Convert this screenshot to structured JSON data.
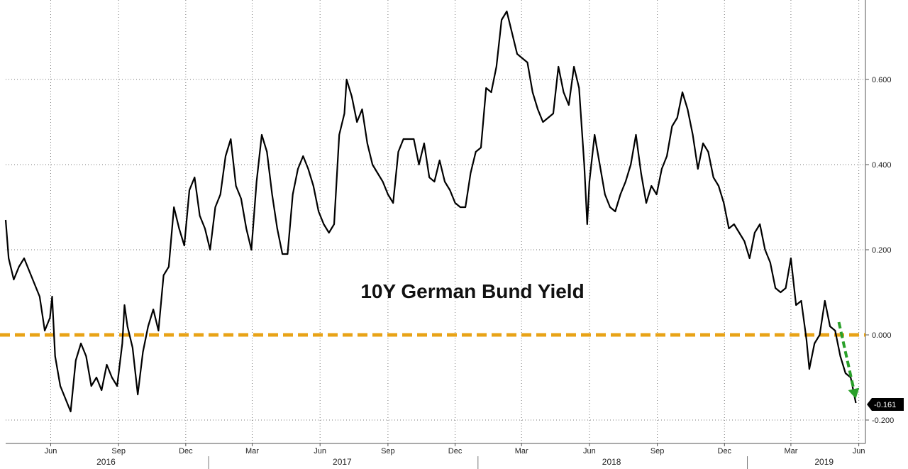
{
  "chart_data": {
    "type": "line",
    "title": "10Y German Bund Yield",
    "ylim": [
      -0.25,
      0.78
    ],
    "yticks": [
      0.6,
      0.4,
      0.2,
      0.0,
      -0.2
    ],
    "ytick_labels": [
      "0.600",
      "0.400",
      "0.200",
      "0.000",
      "-0.200"
    ],
    "grid": true,
    "x_month_ticks": [
      {
        "date": "2016-06-01",
        "label": "Jun"
      },
      {
        "date": "2016-09-01",
        "label": "Sep"
      },
      {
        "date": "2016-12-01",
        "label": "Dec"
      },
      {
        "date": "2017-03-01",
        "label": "Mar"
      },
      {
        "date": "2017-06-01",
        "label": "Jun"
      },
      {
        "date": "2017-09-01",
        "label": "Sep"
      },
      {
        "date": "2017-12-01",
        "label": "Dec"
      },
      {
        "date": "2018-03-01",
        "label": "Mar"
      },
      {
        "date": "2018-06-01",
        "label": "Jun"
      },
      {
        "date": "2018-09-01",
        "label": "Sep"
      },
      {
        "date": "2018-12-01",
        "label": "Dec"
      },
      {
        "date": "2019-03-01",
        "label": "Mar"
      },
      {
        "date": "2019-06-01",
        "label": "Jun"
      }
    ],
    "x_year_labels": [
      {
        "year": "2016",
        "date": "2016-08-15"
      },
      {
        "year": "2017",
        "date": "2017-07-01"
      },
      {
        "year": "2018",
        "date": "2018-07-01"
      },
      {
        "year": "2019",
        "date": "2019-04-15"
      }
    ],
    "x_year_separators": [
      "2017-01-01",
      "2018-01-01",
      "2019-01-01"
    ],
    "x_range": [
      "2016-04-01",
      "2019-06-10"
    ],
    "series": [
      {
        "color": "#000000",
        "points": [
          [
            "2016-04-01",
            0.27
          ],
          [
            "2016-04-05",
            0.18
          ],
          [
            "2016-04-12",
            0.13
          ],
          [
            "2016-04-19",
            0.16
          ],
          [
            "2016-04-26",
            0.18
          ],
          [
            "2016-05-03",
            0.15
          ],
          [
            "2016-05-10",
            0.12
          ],
          [
            "2016-05-17",
            0.09
          ],
          [
            "2016-05-24",
            0.01
          ],
          [
            "2016-05-31",
            0.04
          ],
          [
            "2016-06-03",
            0.09
          ],
          [
            "2016-06-07",
            -0.05
          ],
          [
            "2016-06-14",
            -0.12
          ],
          [
            "2016-06-21",
            -0.15
          ],
          [
            "2016-06-28",
            -0.18
          ],
          [
            "2016-07-05",
            -0.06
          ],
          [
            "2016-07-12",
            -0.02
          ],
          [
            "2016-07-19",
            -0.05
          ],
          [
            "2016-07-26",
            -0.12
          ],
          [
            "2016-08-02",
            -0.1
          ],
          [
            "2016-08-09",
            -0.13
          ],
          [
            "2016-08-16",
            -0.07
          ],
          [
            "2016-08-23",
            -0.1
          ],
          [
            "2016-08-30",
            -0.12
          ],
          [
            "2016-09-06",
            -0.02
          ],
          [
            "2016-09-09",
            0.07
          ],
          [
            "2016-09-13",
            0.02
          ],
          [
            "2016-09-20",
            -0.03
          ],
          [
            "2016-09-27",
            -0.14
          ],
          [
            "2016-10-04",
            -0.04
          ],
          [
            "2016-10-11",
            0.02
          ],
          [
            "2016-10-18",
            0.06
          ],
          [
            "2016-10-25",
            0.01
          ],
          [
            "2016-11-01",
            0.14
          ],
          [
            "2016-11-08",
            0.16
          ],
          [
            "2016-11-15",
            0.3
          ],
          [
            "2016-11-22",
            0.25
          ],
          [
            "2016-11-29",
            0.21
          ],
          [
            "2016-12-06",
            0.34
          ],
          [
            "2016-12-13",
            0.37
          ],
          [
            "2016-12-20",
            0.28
          ],
          [
            "2016-12-27",
            0.25
          ],
          [
            "2017-01-03",
            0.2
          ],
          [
            "2017-01-10",
            0.3
          ],
          [
            "2017-01-17",
            0.33
          ],
          [
            "2017-01-24",
            0.42
          ],
          [
            "2017-01-31",
            0.46
          ],
          [
            "2017-02-07",
            0.35
          ],
          [
            "2017-02-14",
            0.32
          ],
          [
            "2017-02-21",
            0.25
          ],
          [
            "2017-02-28",
            0.2
          ],
          [
            "2017-03-07",
            0.36
          ],
          [
            "2017-03-14",
            0.47
          ],
          [
            "2017-03-21",
            0.43
          ],
          [
            "2017-03-28",
            0.33
          ],
          [
            "2017-04-04",
            0.25
          ],
          [
            "2017-04-11",
            0.19
          ],
          [
            "2017-04-18",
            0.19
          ],
          [
            "2017-04-25",
            0.33
          ],
          [
            "2017-05-02",
            0.39
          ],
          [
            "2017-05-09",
            0.42
          ],
          [
            "2017-05-16",
            0.39
          ],
          [
            "2017-05-23",
            0.35
          ],
          [
            "2017-05-30",
            0.29
          ],
          [
            "2017-06-06",
            0.26
          ],
          [
            "2017-06-13",
            0.24
          ],
          [
            "2017-06-20",
            0.26
          ],
          [
            "2017-06-27",
            0.47
          ],
          [
            "2017-07-04",
            0.52
          ],
          [
            "2017-07-07",
            0.6
          ],
          [
            "2017-07-14",
            0.56
          ],
          [
            "2017-07-21",
            0.5
          ],
          [
            "2017-07-28",
            0.53
          ],
          [
            "2017-08-04",
            0.45
          ],
          [
            "2017-08-11",
            0.4
          ],
          [
            "2017-08-18",
            0.38
          ],
          [
            "2017-08-25",
            0.36
          ],
          [
            "2017-09-01",
            0.33
          ],
          [
            "2017-09-08",
            0.31
          ],
          [
            "2017-09-15",
            0.43
          ],
          [
            "2017-09-22",
            0.46
          ],
          [
            "2017-09-29",
            0.46
          ],
          [
            "2017-10-06",
            0.46
          ],
          [
            "2017-10-13",
            0.4
          ],
          [
            "2017-10-20",
            0.45
          ],
          [
            "2017-10-27",
            0.37
          ],
          [
            "2017-11-03",
            0.36
          ],
          [
            "2017-11-10",
            0.41
          ],
          [
            "2017-11-17",
            0.36
          ],
          [
            "2017-11-24",
            0.34
          ],
          [
            "2017-12-01",
            0.31
          ],
          [
            "2017-12-08",
            0.3
          ],
          [
            "2017-12-15",
            0.3
          ],
          [
            "2017-12-22",
            0.38
          ],
          [
            "2017-12-29",
            0.43
          ],
          [
            "2018-01-05",
            0.44
          ],
          [
            "2018-01-12",
            0.58
          ],
          [
            "2018-01-19",
            0.57
          ],
          [
            "2018-01-26",
            0.63
          ],
          [
            "2018-02-02",
            0.74
          ],
          [
            "2018-02-09",
            0.76
          ],
          [
            "2018-02-16",
            0.71
          ],
          [
            "2018-02-23",
            0.66
          ],
          [
            "2018-03-02",
            0.65
          ],
          [
            "2018-03-09",
            0.64
          ],
          [
            "2018-03-16",
            0.57
          ],
          [
            "2018-03-23",
            0.53
          ],
          [
            "2018-03-30",
            0.5
          ],
          [
            "2018-04-06",
            0.51
          ],
          [
            "2018-04-13",
            0.52
          ],
          [
            "2018-04-20",
            0.63
          ],
          [
            "2018-04-27",
            0.57
          ],
          [
            "2018-05-04",
            0.54
          ],
          [
            "2018-05-11",
            0.63
          ],
          [
            "2018-05-18",
            0.58
          ],
          [
            "2018-05-25",
            0.4
          ],
          [
            "2018-05-29",
            0.26
          ],
          [
            "2018-06-01",
            0.36
          ],
          [
            "2018-06-08",
            0.47
          ],
          [
            "2018-06-15",
            0.4
          ],
          [
            "2018-06-22",
            0.33
          ],
          [
            "2018-06-29",
            0.3
          ],
          [
            "2018-07-06",
            0.29
          ],
          [
            "2018-07-13",
            0.33
          ],
          [
            "2018-07-20",
            0.36
          ],
          [
            "2018-07-27",
            0.4
          ],
          [
            "2018-08-03",
            0.47
          ],
          [
            "2018-08-10",
            0.38
          ],
          [
            "2018-08-17",
            0.31
          ],
          [
            "2018-08-24",
            0.35
          ],
          [
            "2018-08-31",
            0.33
          ],
          [
            "2018-09-07",
            0.39
          ],
          [
            "2018-09-14",
            0.42
          ],
          [
            "2018-09-21",
            0.49
          ],
          [
            "2018-09-28",
            0.51
          ],
          [
            "2018-10-05",
            0.57
          ],
          [
            "2018-10-12",
            0.53
          ],
          [
            "2018-10-19",
            0.47
          ],
          [
            "2018-10-26",
            0.39
          ],
          [
            "2018-11-02",
            0.45
          ],
          [
            "2018-11-09",
            0.43
          ],
          [
            "2018-11-16",
            0.37
          ],
          [
            "2018-11-23",
            0.35
          ],
          [
            "2018-11-30",
            0.31
          ],
          [
            "2018-12-07",
            0.25
          ],
          [
            "2018-12-14",
            0.26
          ],
          [
            "2018-12-21",
            0.24
          ],
          [
            "2018-12-28",
            0.22
          ],
          [
            "2019-01-04",
            0.18
          ],
          [
            "2019-01-11",
            0.24
          ],
          [
            "2019-01-18",
            0.26
          ],
          [
            "2019-01-25",
            0.2
          ],
          [
            "2019-02-01",
            0.17
          ],
          [
            "2019-02-08",
            0.11
          ],
          [
            "2019-02-15",
            0.1
          ],
          [
            "2019-02-22",
            0.11
          ],
          [
            "2019-03-01",
            0.18
          ],
          [
            "2019-03-08",
            0.07
          ],
          [
            "2019-03-15",
            0.08
          ],
          [
            "2019-03-22",
            -0.01
          ],
          [
            "2019-03-26",
            -0.08
          ],
          [
            "2019-04-02",
            -0.02
          ],
          [
            "2019-04-09",
            0.0
          ],
          [
            "2019-04-16",
            0.08
          ],
          [
            "2019-04-23",
            0.02
          ],
          [
            "2019-04-30",
            0.01
          ],
          [
            "2019-05-07",
            -0.05
          ],
          [
            "2019-05-14",
            -0.09
          ],
          [
            "2019-05-21",
            -0.1
          ],
          [
            "2019-05-28",
            -0.16
          ]
        ]
      }
    ],
    "reference_line": {
      "y": 0.0,
      "color": "#e8a317",
      "style": "dashed"
    },
    "trend_arrow": {
      "from": [
        "2019-05-05",
        0.03
      ],
      "to": [
        "2019-05-28",
        -0.15
      ],
      "color": "#2aa02a",
      "style": "dashed"
    },
    "last_value_label": "-0.161"
  }
}
